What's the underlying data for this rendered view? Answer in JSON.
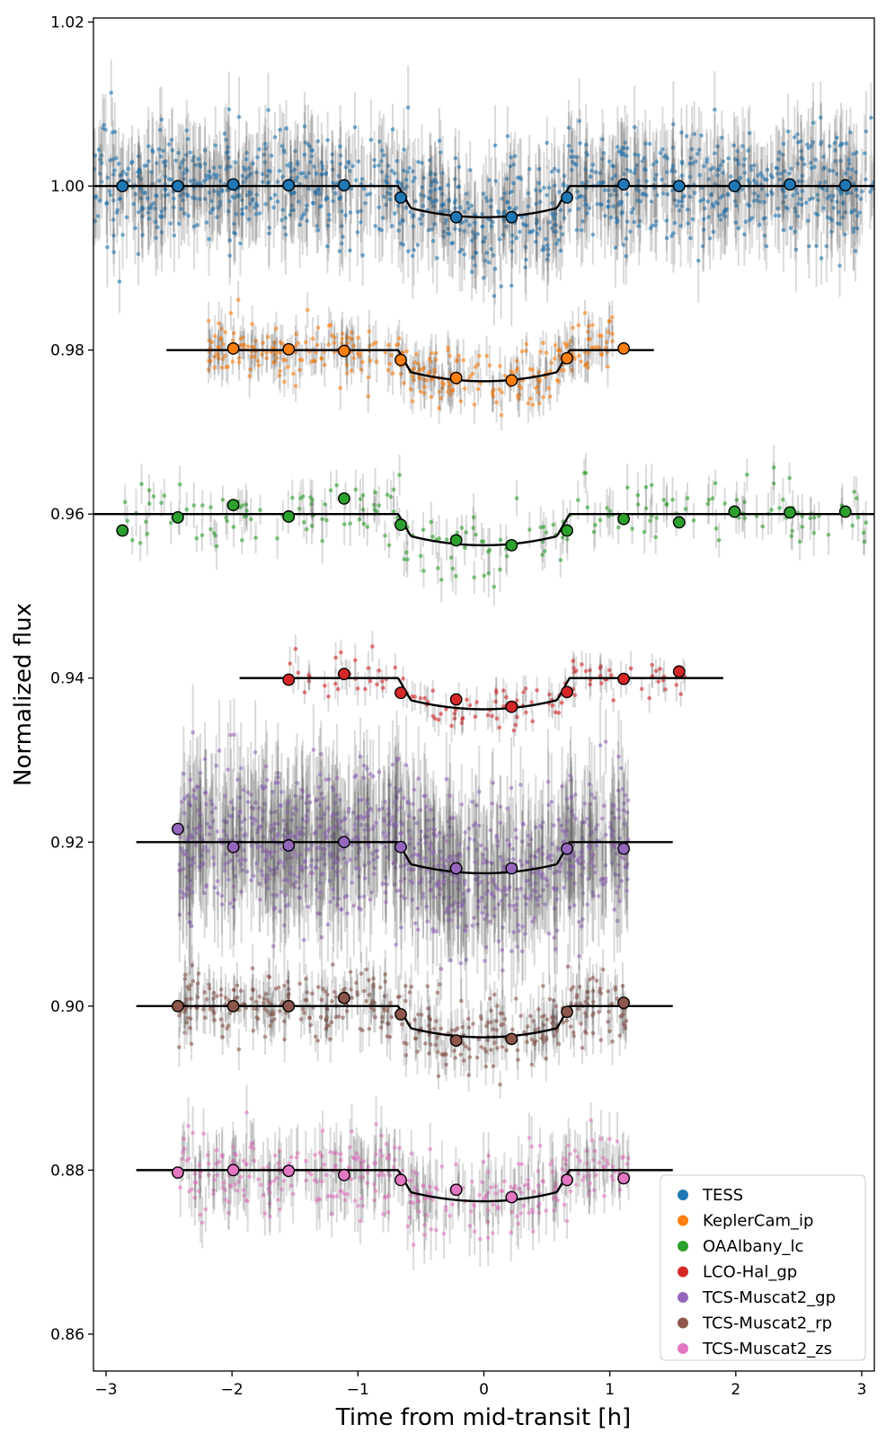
{
  "chart_data": {
    "type": "scatter",
    "title": "",
    "xlabel": "Time from mid-transit [h]",
    "ylabel": "Normalized flux",
    "xlim": [
      -3.1,
      3.1
    ],
    "ylim": [
      0.8555,
      1.0205
    ],
    "xticks": [
      -3,
      -2,
      -1,
      0,
      1,
      2,
      3
    ],
    "xtick_labels": [
      "−3",
      "−2",
      "−1",
      "0",
      "1",
      "2",
      "3"
    ],
    "yticks": [
      0.86,
      0.88,
      0.9,
      0.92,
      0.94,
      0.96,
      0.98,
      1.0,
      1.02
    ],
    "ytick_labels": [
      "0.86",
      "0.88",
      "0.90",
      "0.92",
      "0.94",
      "0.96",
      "0.98",
      "1.00",
      "1.02"
    ],
    "grid": false,
    "legend_position": "bottom-right",
    "model": {
      "depth": 0.0038,
      "half_duration_h": 0.68,
      "ingress_h": 0.1
    },
    "series": [
      {
        "name": "TESS",
        "color": "#1f77b4",
        "offset": 1.0,
        "model_x_range": [
          -3.1,
          3.1
        ],
        "raw_x_range": [
          -3.1,
          3.1
        ],
        "scatter": 0.0035,
        "n_raw": 1200,
        "binned": [
          [
            -2.87,
            1.0
          ],
          [
            -2.43,
            1.0
          ],
          [
            -1.99,
            1.0002
          ],
          [
            -1.55,
            1.0001
          ],
          [
            -1.11,
            1.0001
          ],
          [
            -0.66,
            0.9986
          ],
          [
            -0.22,
            0.9962
          ],
          [
            0.22,
            0.9962
          ],
          [
            0.66,
            0.9986
          ],
          [
            1.11,
            1.0002
          ],
          [
            1.55,
            1.0
          ],
          [
            1.99,
            1.0
          ],
          [
            2.43,
            1.0002
          ],
          [
            2.87,
            1.0001
          ]
        ]
      },
      {
        "name": "KeplerCam_ip",
        "color": "#ff7f0e",
        "offset": 0.98,
        "model_x_range": [
          -2.52,
          1.35
        ],
        "raw_x_range": [
          -2.2,
          1.05
        ],
        "scatter": 0.0018,
        "n_raw": 360,
        "binned": [
          [
            -1.99,
            0.9802
          ],
          [
            -1.55,
            0.9801
          ],
          [
            -1.11,
            0.9799
          ],
          [
            -0.66,
            0.9788
          ],
          [
            -0.22,
            0.9766
          ],
          [
            0.22,
            0.9763
          ],
          [
            0.66,
            0.979
          ],
          [
            1.11,
            0.9802
          ]
        ]
      },
      {
        "name": "OAAlbany_lc",
        "color": "#2ca02c",
        "offset": 0.96,
        "model_x_range": [
          -3.1,
          3.1
        ],
        "raw_x_range": [
          -2.85,
          3.1
        ],
        "scatter": 0.002,
        "n_raw": 220,
        "binned": [
          [
            -2.87,
            0.958
          ],
          [
            -2.43,
            0.9596
          ],
          [
            -1.99,
            0.9611
          ],
          [
            -1.55,
            0.9597
          ],
          [
            -1.11,
            0.9619
          ],
          [
            -0.66,
            0.9587
          ],
          [
            -0.22,
            0.9568
          ],
          [
            0.22,
            0.9562
          ],
          [
            0.66,
            0.958
          ],
          [
            1.11,
            0.9594
          ],
          [
            1.55,
            0.959
          ],
          [
            1.99,
            0.9603
          ],
          [
            2.43,
            0.9602
          ],
          [
            2.87,
            0.9603
          ]
        ]
      },
      {
        "name": "LCO-Hal_gp",
        "color": "#d62728",
        "offset": 0.94,
        "model_x_range": [
          -1.94,
          1.9
        ],
        "raw_x_range": [
          -1.55,
          1.6
        ],
        "scatter": 0.0015,
        "n_raw": 130,
        "binned": [
          [
            -1.55,
            0.9398
          ],
          [
            -1.11,
            0.9405
          ],
          [
            -0.66,
            0.9382
          ],
          [
            -0.22,
            0.9374
          ],
          [
            0.22,
            0.9365
          ],
          [
            0.66,
            0.9383
          ],
          [
            1.11,
            0.9399
          ],
          [
            1.55,
            0.9408
          ]
        ]
      },
      {
        "name": "TCS-Muscat2_gp",
        "color": "#9467bd",
        "offset": 0.92,
        "model_x_range": [
          -2.76,
          1.5
        ],
        "raw_x_range": [
          -2.42,
          1.15
        ],
        "scatter": 0.0045,
        "n_raw": 1100,
        "binned": [
          [
            -2.43,
            0.9216
          ],
          [
            -1.99,
            0.9194
          ],
          [
            -1.55,
            0.9196
          ],
          [
            -1.11,
            0.92
          ],
          [
            -0.66,
            0.9194
          ],
          [
            -0.22,
            0.9168
          ],
          [
            0.22,
            0.9168
          ],
          [
            0.66,
            0.9192
          ],
          [
            1.11,
            0.9192
          ]
        ]
      },
      {
        "name": "TCS-Muscat2_rp",
        "color": "#8c564b",
        "offset": 0.9,
        "model_x_range": [
          -2.76,
          1.5
        ],
        "raw_x_range": [
          -2.42,
          1.15
        ],
        "scatter": 0.002,
        "n_raw": 420,
        "binned": [
          [
            -2.43,
            0.9
          ],
          [
            -1.99,
            0.9
          ],
          [
            -1.55,
            0.9
          ],
          [
            -1.11,
            0.901
          ],
          [
            -0.66,
            0.899
          ],
          [
            -0.22,
            0.8958
          ],
          [
            0.22,
            0.896
          ],
          [
            0.66,
            0.8993
          ],
          [
            1.11,
            0.9004
          ]
        ]
      },
      {
        "name": "TCS-Muscat2_zs",
        "color": "#e377c2",
        "offset": 0.88,
        "model_x_range": [
          -2.76,
          1.5
        ],
        "raw_x_range": [
          -2.42,
          1.15
        ],
        "scatter": 0.0025,
        "n_raw": 380,
        "binned": [
          [
            -2.43,
            0.8797
          ],
          [
            -1.99,
            0.88
          ],
          [
            -1.55,
            0.8799
          ],
          [
            -1.11,
            0.8794
          ],
          [
            -0.66,
            0.8788
          ],
          [
            -0.22,
            0.8776
          ],
          [
            0.22,
            0.8767
          ],
          [
            0.66,
            0.8788
          ],
          [
            1.11,
            0.879
          ]
        ]
      }
    ]
  }
}
